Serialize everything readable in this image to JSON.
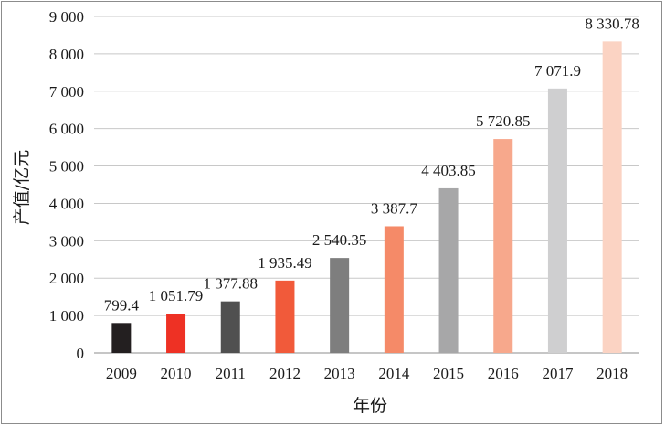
{
  "chart_data": {
    "type": "bar",
    "xlabel": "年份",
    "ylabel": "产值/亿元",
    "ylim": [
      0,
      9000
    ],
    "ytick_values": [
      0,
      1000,
      2000,
      3000,
      4000,
      5000,
      6000,
      7000,
      8000,
      9000
    ],
    "ytick_labels": [
      "0",
      "1 000",
      "2 000",
      "3 000",
      "4 000",
      "5 000",
      "6 000",
      "7 000",
      "8 000",
      "9 000"
    ],
    "grid": "horizontal",
    "legend": "none",
    "categories": [
      "2009",
      "2010",
      "2011",
      "2012",
      "2013",
      "2014",
      "2015",
      "2016",
      "2017",
      "2018"
    ],
    "values": [
      799.4,
      1051.79,
      1377.88,
      1935.49,
      2540.35,
      3387.7,
      4403.85,
      5720.85,
      7071.9,
      8330.78
    ],
    "value_labels": [
      "799.4",
      "1 051.79",
      "1 377.88",
      "1 935.49",
      "2 540.35",
      "3 387.7",
      "4 403.85",
      "5 720.85",
      "7 071.9",
      "8 330.78"
    ],
    "colors": [
      "#231f20",
      "#ee3124",
      "#505050",
      "#f15a3a",
      "#7e7e7e",
      "#f58a68",
      "#a7a7a8",
      "#f7a88c",
      "#cfcfd0",
      "#fbd3c3"
    ],
    "gridline_color": "#c8c8c8",
    "axis_color": "#8c8c8c"
  }
}
